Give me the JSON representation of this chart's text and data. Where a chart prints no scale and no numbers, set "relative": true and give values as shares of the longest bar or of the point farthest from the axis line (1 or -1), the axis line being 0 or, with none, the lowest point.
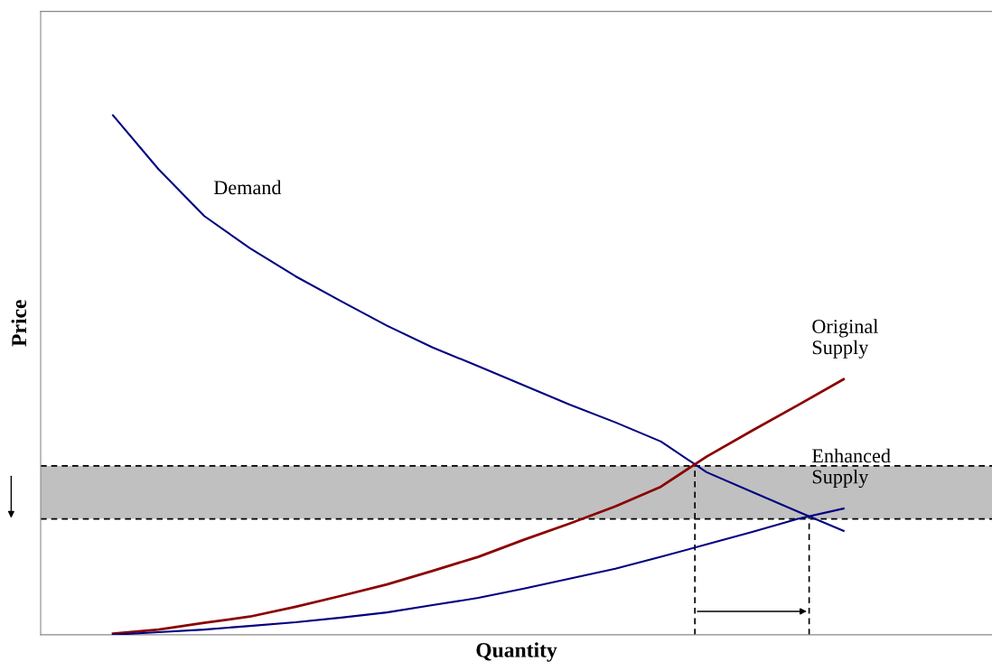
{
  "chart_data": {
    "type": "line",
    "relative": true,
    "xlabel": "Quantity",
    "ylabel": "Price",
    "marker": "none",
    "categories": [
      null,
      null,
      null,
      null,
      null,
      null,
      null,
      null,
      null,
      null,
      null,
      null,
      null,
      null,
      null,
      null,
      null
    ],
    "series": [
      {
        "name": "Demand",
        "color": "#000080",
        "values": [
          1.0,
          0.896,
          0.806,
          0.744,
          0.69,
          0.642,
          0.595,
          0.553,
          0.517,
          0.48,
          0.443,
          0.409,
          0.372,
          0.313,
          0.275,
          0.237,
          0.2
        ]
      },
      {
        "name": "Original\nSupply",
        "color": "#8b0000",
        "values": [
          0.002,
          0.01,
          0.023,
          0.035,
          0.054,
          0.075,
          0.097,
          0.123,
          0.15,
          0.183,
          0.214,
          0.247,
          0.285,
          0.343,
          0.393,
          0.442,
          0.492
        ]
      },
      {
        "name": "Enhanced\nSupply",
        "color": "#000080",
        "values": [
          0.0,
          0.005,
          0.01,
          0.017,
          0.024,
          0.033,
          0.043,
          0.057,
          0.071,
          0.089,
          0.108,
          0.127,
          0.15,
          0.174,
          0.198,
          0.223,
          0.243
        ]
      }
    ],
    "bands": [
      {
        "axis": "y",
        "from": 0.223,
        "to": 0.325,
        "color": "#c0c0c0"
      }
    ],
    "ref_lines": [
      {
        "axis": "y",
        "value": 0.325,
        "line_style": "dashed",
        "color": "#000000"
      },
      {
        "axis": "y",
        "value": 0.223,
        "line_style": "dashed",
        "color": "#000000"
      }
    ]
  }
}
